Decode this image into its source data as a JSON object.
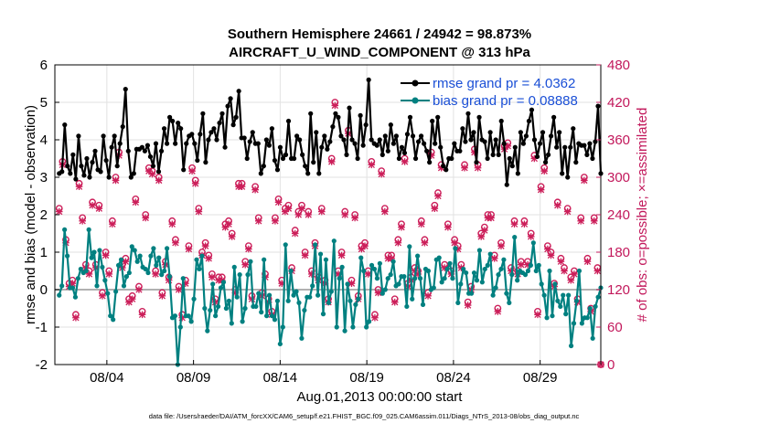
{
  "chart_data": {
    "type": "line",
    "title_line1": "Southern Hemisphere 24661 / 24942 = 98.873%",
    "title_line2": "AIRCRAFT_U_WIND_COMPONENT @ 313 hPa",
    "xlabel": "Aug.01,2013 00:00:00 start",
    "ylabel_left": "rmse and bias (model - observation)",
    "ylabel_right": "# of obs: o=possible; ×=assimilated",
    "footnote": "data file: /Users/raeder/DAI/ATM_forcXX/CAM6_setup/f.e21.FHIST_BGC.f09_025.CAM6assim.011/Diags_NTrS_2013-08/obs_diag_output.nc",
    "xlim": [
      1,
      32.5
    ],
    "ylim_left": [
      -2,
      6
    ],
    "ylim_right": [
      0,
      480
    ],
    "left_ticks": [
      "-2",
      "-1",
      "0",
      "1",
      "2",
      "3",
      "4",
      "5",
      "6"
    ],
    "right_ticks": [
      "0",
      "60",
      "120",
      "180",
      "240",
      "300",
      "360",
      "420",
      "480"
    ],
    "x_tick_values": [
      4,
      9,
      14,
      19,
      24,
      29
    ],
    "x_tick_labels": [
      "08/04",
      "08/09",
      "08/14",
      "08/19",
      "08/24",
      "08/29"
    ],
    "zero_line": 0,
    "series": [
      {
        "name": "rmse",
        "legend": "rmse grand pr = 4.0362",
        "color": "#000000",
        "values": [
          3.1,
          3.15,
          4.4,
          3.3,
          3.1,
          3.6,
          2.95,
          4.1,
          3.3,
          3.05,
          3.5,
          3.0,
          3.4,
          3.7,
          3.2,
          3.15,
          4.1,
          3.45,
          3.0,
          3.8,
          4.1,
          3.3,
          3.9,
          4.35,
          5.35,
          3.7,
          3.0,
          3.1,
          3.75,
          3.75,
          3.8,
          3.7,
          3.85,
          3.55,
          3.3,
          3.9,
          3.15,
          3.7,
          4.3,
          3.9,
          4.6,
          4.5,
          3.9,
          4.45,
          4.3,
          3.2,
          3.9,
          4.1,
          4.15,
          3.9,
          3.45,
          4.15,
          4.7,
          3.4,
          4.0,
          4.2,
          4.3,
          4.0,
          4.45,
          4.7,
          3.8,
          4.9,
          5.1,
          4.4,
          4.6,
          5.3,
          4.05,
          4.05,
          3.5,
          3.95,
          4.2,
          3.9,
          3.9,
          3.1,
          3.3,
          4.0,
          3.85,
          4.3,
          3.45,
          3.2,
          3.8,
          3.5,
          3.6,
          4.5,
          3.5,
          3.5,
          4.1,
          4.0,
          3.6,
          3.3,
          3.1,
          4.7,
          3.4,
          4.2,
          3.1,
          3.8,
          4.1,
          3.75,
          3.95,
          4.35,
          4.7,
          4.6,
          4.1,
          4.0,
          3.6,
          4.85,
          4.0,
          3.9,
          3.5,
          4.65,
          3.85,
          4.4,
          5.6,
          4.0,
          3.9,
          3.85,
          4.0,
          3.6,
          4.1,
          3.7,
          4.4,
          3.9,
          4.1,
          3.5,
          3.8,
          3.65,
          4.15,
          4.6,
          4.1,
          3.5,
          3.95,
          4.1,
          3.9,
          3.7,
          3.4,
          4.5,
          3.9,
          4.6,
          3.8,
          3.3,
          3.2,
          3.5,
          3.5,
          3.9,
          3.7,
          3.7,
          4.3,
          3.95,
          4.7,
          4.0,
          4.2,
          3.4,
          4.6,
          4.0,
          3.95,
          3.5,
          4.2,
          3.6,
          4.0,
          3.6,
          4.5,
          3.9,
          2.8,
          3.5,
          3.3,
          3.8,
          3.1,
          4.2,
          3.9,
          4.1,
          4.5,
          4.8,
          4.0,
          3.55,
          3.9,
          4.2,
          3.4,
          3.6,
          4.1,
          4.6,
          3.8,
          4.2,
          3.1,
          3.8,
          3.0,
          3.8,
          4.3,
          3.4,
          3.9,
          3.85,
          3.85,
          3.6,
          3.9,
          3.5,
          3.95,
          4.9,
          3.1
        ]
      },
      {
        "name": "bias",
        "legend": "bias grand pr = 0.08888",
        "color": "#008080",
        "values": [
          -0.15,
          0.1,
          1.6,
          0.9,
          0.05,
          0.05,
          -0.2,
          0.3,
          0.55,
          0.45,
          0.5,
          1.6,
          0.85,
          1.0,
          0.1,
          1.05,
          0.6,
          0.25,
          -0.1,
          -0.7,
          -0.8,
          -0.05,
          0.65,
          0.8,
          0.1,
          0.35,
          0.45,
          1.15,
          1.05,
          0.75,
          0.9,
          0.6,
          0.55,
          0.45,
          0.9,
          1.1,
          0.65,
          0.85,
          0.4,
          0.5,
          1.1,
          0.35,
          -0.75,
          -0.7,
          -2.0,
          -1.0,
          0.3,
          -0.7,
          -0.7,
          -0.85,
          -0.25,
          0.8,
          0.55,
          0.9,
          -0.5,
          -1.1,
          -0.55,
          0.15,
          -0.7,
          -0.45,
          0.05,
          0.2,
          -0.5,
          -0.3,
          -0.9,
          0.6,
          -0.2,
          0.4,
          -0.85,
          -0.5,
          0.4,
          0.75,
          -0.45,
          -0.45,
          -0.1,
          -0.6,
          0.8,
          -0.7,
          -0.15,
          -0.7,
          -0.8,
          -0.3,
          -1.45,
          -1.0,
          1.2,
          -0.3,
          0.5,
          -0.15,
          -0.05,
          -0.35,
          -1.3,
          -0.55,
          -0.2,
          -0.2,
          0.1,
          1.2,
          -0.15,
          0.95,
          -0.65,
          0.8,
          -0.35,
          -0.05,
          1.3,
          -1.0,
          0.3,
          0.6,
          -1.1,
          0.15,
          -0.3,
          -1.0,
          -0.4,
          -0.25,
          0.85,
          0.5,
          -1.0,
          -0.85,
          0.65,
          0.55,
          0.3,
          0.7,
          -0.1,
          0.0,
          0.3,
          0.4,
          0.75,
          0.1,
          0.15,
          0.35,
          0.35,
          -0.45,
          1.15,
          -0.25,
          0.3,
          0.9,
          0.3,
          -0.4,
          0.55,
          0.5,
          0.0,
          0.05,
          0.8,
          0.85,
          0.2,
          0.3,
          0.55,
          0.7,
          0.3,
          1.1,
          -0.35,
          0.15,
          0.55,
          0.45,
          -0.1,
          -0.1,
          0.45,
          0.25,
          1.05,
          0.2,
          0.55,
          0.65,
          0.95,
          -0.15,
          0.05,
          0.4,
          0.55,
          0.8,
          -0.1,
          -0.35,
          0.4,
          1.4,
          0.25,
          0.5,
          0.45,
          0.4,
          0.5,
          0.65,
          1.25,
          0.5,
          0.65,
          0.15,
          -0.15,
          -0.75,
          0.5,
          -0.7,
          0.15,
          -0.3,
          -0.45,
          -0.15,
          -0.65,
          -0.15,
          -1.5,
          -0.9,
          -0.3,
          0.5,
          -0.9,
          -0.75,
          -0.75,
          -0.5,
          -1.3,
          -0.45,
          -0.2,
          0.05
        ]
      },
      {
        "name": "obs_possible",
        "legend": "o=possible",
        "color": "#cc1f5a",
        "marker": "o",
        "values": [
          250,
          325,
          200,
          130,
          135,
          80,
          290,
          235,
          160,
          150,
          260,
          160,
          255,
          115,
          180,
          150,
          230,
          300,
          340,
          160,
          170,
          105,
          110,
          265,
          125,
          85,
          240,
          315,
          310,
          150,
          300,
          115,
          165,
          140,
          230,
          200,
          125,
          80,
          135,
          190,
          315,
          295,
          250,
          180,
          195,
          175,
          145,
          105,
          140,
          140,
          225,
          230,
          210,
          120,
          290,
          290,
          165,
          190,
          110,
          285,
          235,
          115,
          145,
          105,
          85,
          235,
          265,
          135,
          250,
          255,
          155,
          215,
          245,
          255,
          180,
          245,
          150,
          195,
          140,
          250,
          135,
          105,
          330,
          420,
          150,
          180,
          245,
          375,
          135,
          240,
          110,
          190,
          195,
          150,
          325,
          80,
          120,
          310,
          250,
          175,
          175,
          105,
          200,
          225,
          330,
          130,
          140,
          155,
          150,
          230,
          200,
          115,
          340,
          255,
          275,
          320,
          160,
          225,
          150,
          200,
          190,
          160,
          320,
          100,
          125,
          345,
          320,
          210,
          220,
          240,
          240,
          175,
          90,
          195,
          350,
          355,
          155,
          230,
          150,
          165,
          230,
          165,
          210,
          335,
          85,
          285,
          315,
          190,
          180,
          130,
          260,
          170,
          155,
          250,
          140,
          150,
          105,
          235,
          300,
          170,
          90,
          235,
          155,
          0
        ]
      },
      {
        "name": "obs_assimilated",
        "legend": "×=assimilated",
        "color": "#cc1f5a",
        "marker": "x",
        "values": [
          245,
          320,
          195,
          125,
          130,
          75,
          285,
          230,
          155,
          145,
          255,
          155,
          250,
          110,
          175,
          145,
          225,
          295,
          335,
          155,
          165,
          100,
          105,
          260,
          120,
          80,
          235,
          310,
          305,
          145,
          295,
          110,
          160,
          135,
          225,
          195,
          120,
          75,
          130,
          185,
          310,
          290,
          245,
          175,
          190,
          170,
          140,
          100,
          135,
          135,
          220,
          225,
          205,
          115,
          285,
          285,
          160,
          185,
          105,
          280,
          230,
          110,
          140,
          100,
          80,
          230,
          260,
          130,
          245,
          250,
          150,
          210,
          240,
          250,
          175,
          240,
          145,
          190,
          135,
          245,
          130,
          100,
          325,
          415,
          145,
          175,
          240,
          370,
          130,
          235,
          105,
          185,
          190,
          145,
          320,
          75,
          115,
          305,
          245,
          170,
          170,
          100,
          195,
          220,
          325,
          125,
          135,
          150,
          145,
          225,
          195,
          110,
          335,
          250,
          270,
          315,
          155,
          220,
          145,
          195,
          185,
          155,
          315,
          95,
          120,
          340,
          315,
          205,
          215,
          235,
          235,
          170,
          85,
          190,
          345,
          350,
          150,
          225,
          145,
          160,
          225,
          160,
          205,
          330,
          80,
          280,
          310,
          185,
          175,
          125,
          255,
          165,
          150,
          245,
          135,
          145,
          100,
          230,
          295,
          165,
          85,
          230,
          150,
          0
        ]
      }
    ]
  }
}
